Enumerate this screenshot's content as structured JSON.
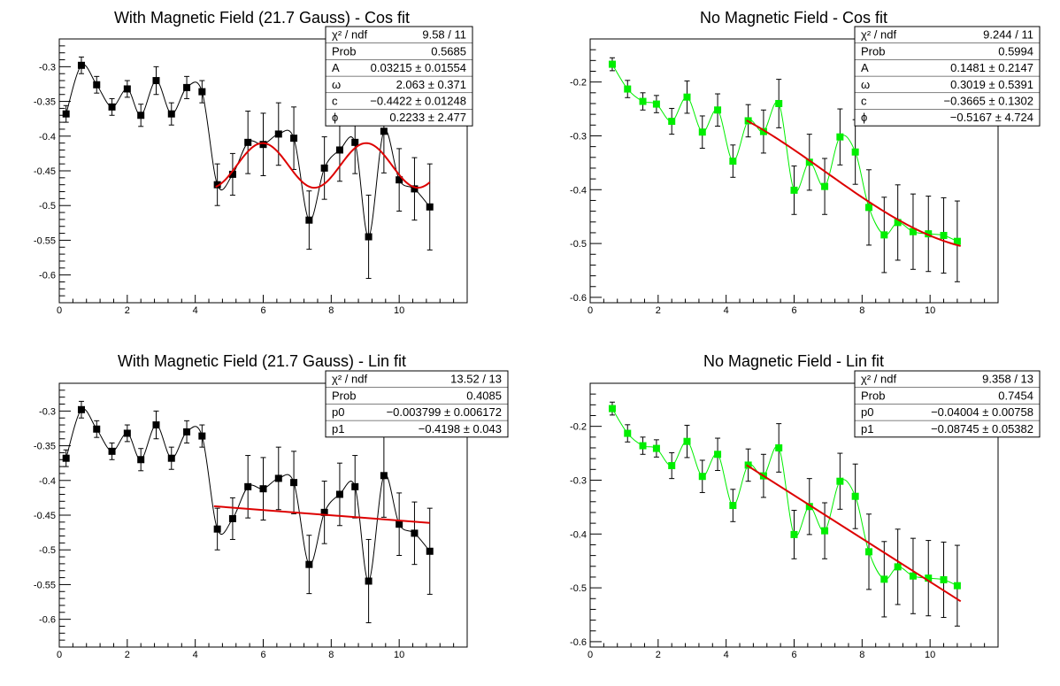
{
  "chart_data": [
    {
      "type": "scatter",
      "title": "With Magnetic Field (21.7 Gauss) - Cos fit",
      "xlim": [
        0,
        12
      ],
      "ylim": [
        -0.64,
        -0.26
      ],
      "xticks": [
        0,
        2,
        4,
        6,
        8,
        10
      ],
      "yticks": [
        -0.3,
        -0.35,
        -0.4,
        -0.45,
        -0.5,
        -0.55,
        -0.6
      ],
      "ytick_labels": [
        "-0.3",
        "-0.35",
        "-0.4",
        "-0.45",
        "-0.5",
        "-0.55",
        "-0.6"
      ],
      "marker_color": "#000000",
      "line_color": "#000000",
      "fit_color": "#dd0000",
      "fit": {
        "kind": "cos",
        "params": {
          "A": 0.03215,
          "omega": 2.063,
          "c": -0.4422,
          "phi": 0.2233
        },
        "x_range": [
          4.6,
          10.9
        ]
      },
      "x": [
        0.2,
        0.65,
        1.1,
        1.55,
        2.0,
        2.4,
        2.85,
        3.3,
        3.75,
        4.2,
        4.65,
        5.1,
        5.55,
        6.0,
        6.45,
        6.9,
        7.35,
        7.8,
        8.25,
        8.7,
        9.1,
        9.55,
        10.0,
        10.45,
        10.9
      ],
      "y": [
        -0.368,
        -0.298,
        -0.326,
        -0.358,
        -0.332,
        -0.37,
        -0.32,
        -0.368,
        -0.33,
        -0.336,
        -0.47,
        -0.455,
        -0.409,
        -0.412,
        -0.397,
        -0.403,
        -0.521,
        -0.446,
        -0.42,
        -0.409,
        -0.545,
        -0.393,
        -0.463,
        -0.476,
        -0.502
      ],
      "yerr": [
        0.012,
        0.012,
        0.012,
        0.012,
        0.012,
        0.016,
        0.02,
        0.016,
        0.016,
        0.016,
        0.03,
        0.03,
        0.045,
        0.045,
        0.045,
        0.045,
        0.042,
        0.045,
        0.045,
        0.045,
        0.06,
        0.06,
        0.045,
        0.045,
        0.062
      ],
      "xerr": 0.08,
      "stats": [
        {
          "label": "χ² / ndf",
          "value": "9.58 / 11"
        },
        {
          "label": "Prob",
          "value": "0.5685"
        },
        {
          "label": "A",
          "value": "0.03215 ± 0.01554"
        },
        {
          "label": "ω",
          "value": "2.063 ± 0.371"
        },
        {
          "label": "c",
          "value": "−0.4422 ± 0.01248"
        },
        {
          "label": "ϕ",
          "value": "0.2233 ± 2.477"
        }
      ]
    },
    {
      "type": "scatter",
      "title": "No Magnetic Field - Cos fit",
      "xlim": [
        0,
        12
      ],
      "ylim": [
        -0.61,
        -0.12
      ],
      "xticks": [
        0,
        2,
        4,
        6,
        8,
        10
      ],
      "yticks": [
        -0.2,
        -0.3,
        -0.4,
        -0.5,
        -0.6
      ],
      "ytick_labels": [
        "-0.2",
        "-0.3",
        "-0.4",
        "-0.5",
        "-0.6"
      ],
      "marker_color": "#00ee00",
      "line_color": "#00ee00",
      "fit_color": "#dd0000",
      "fit": {
        "kind": "cos",
        "params": {
          "A": 0.1481,
          "omega": 0.3019,
          "c": -0.3665,
          "phi": -0.5167
        },
        "x_range": [
          4.6,
          10.9
        ]
      },
      "x": [
        0.65,
        1.1,
        1.55,
        1.95,
        2.4,
        2.85,
        3.3,
        3.75,
        4.2,
        4.65,
        5.1,
        5.55,
        6.0,
        6.45,
        6.9,
        7.35,
        7.8,
        8.2,
        8.65,
        9.05,
        9.5,
        9.95,
        10.4,
        10.8
      ],
      "y": [
        -0.167,
        -0.213,
        -0.236,
        -0.241,
        -0.273,
        -0.228,
        -0.293,
        -0.252,
        -0.347,
        -0.272,
        -0.292,
        -0.24,
        -0.401,
        -0.349,
        -0.394,
        -0.302,
        -0.33,
        -0.433,
        -0.484,
        -0.461,
        -0.478,
        -0.482,
        -0.485,
        -0.496
      ],
      "yerr": [
        0.012,
        0.016,
        0.016,
        0.016,
        0.024,
        0.03,
        0.03,
        0.03,
        0.03,
        0.03,
        0.04,
        0.045,
        0.045,
        0.052,
        0.052,
        0.052,
        0.06,
        0.07,
        0.07,
        0.07,
        0.07,
        0.07,
        0.07,
        0.075
      ],
      "xerr": 0.08,
      "stats": [
        {
          "label": "χ² / ndf",
          "value": "9.244 / 11"
        },
        {
          "label": "Prob",
          "value": "0.5994"
        },
        {
          "label": "A",
          "value": "0.1481 ± 0.2147"
        },
        {
          "label": "ω",
          "value": "0.3019 ± 0.5391"
        },
        {
          "label": "c",
          "value": "−0.3665 ± 0.1302"
        },
        {
          "label": "ϕ",
          "value": "−0.5167 ± 4.724"
        }
      ]
    },
    {
      "type": "scatter",
      "title": "With Magnetic Field (21.7 Gauss) - Lin fit",
      "xlim": [
        0,
        12
      ],
      "ylim": [
        -0.64,
        -0.26
      ],
      "xticks": [
        0,
        2,
        4,
        6,
        8,
        10
      ],
      "yticks": [
        -0.3,
        -0.35,
        -0.4,
        -0.45,
        -0.5,
        -0.55,
        -0.6
      ],
      "ytick_labels": [
        "-0.3",
        "-0.35",
        "-0.4",
        "-0.45",
        "-0.5",
        "-0.55",
        "-0.6"
      ],
      "marker_color": "#000000",
      "line_color": "#000000",
      "fit_color": "#dd0000",
      "fit": {
        "kind": "lin",
        "params": {
          "p0": -0.003799,
          "p1": -0.4198
        },
        "x_range": [
          4.55,
          10.9
        ]
      },
      "x": [
        0.2,
        0.65,
        1.1,
        1.55,
        2.0,
        2.4,
        2.85,
        3.3,
        3.75,
        4.2,
        4.65,
        5.1,
        5.55,
        6.0,
        6.45,
        6.9,
        7.35,
        7.8,
        8.25,
        8.7,
        9.1,
        9.55,
        10.0,
        10.45,
        10.9
      ],
      "y": [
        -0.368,
        -0.298,
        -0.326,
        -0.358,
        -0.332,
        -0.37,
        -0.32,
        -0.368,
        -0.33,
        -0.336,
        -0.47,
        -0.455,
        -0.409,
        -0.412,
        -0.397,
        -0.403,
        -0.521,
        -0.446,
        -0.42,
        -0.409,
        -0.545,
        -0.393,
        -0.463,
        -0.476,
        -0.502
      ],
      "yerr": [
        0.012,
        0.012,
        0.012,
        0.012,
        0.012,
        0.016,
        0.02,
        0.016,
        0.016,
        0.016,
        0.03,
        0.03,
        0.045,
        0.045,
        0.045,
        0.045,
        0.042,
        0.045,
        0.045,
        0.045,
        0.06,
        0.06,
        0.045,
        0.045,
        0.062
      ],
      "xerr": 0.08,
      "stats": [
        {
          "label": "χ² / ndf",
          "value": "13.52 / 13"
        },
        {
          "label": "Prob",
          "value": "0.4085"
        },
        {
          "label": "p0",
          "value": "−0.003799 ± 0.006172"
        },
        {
          "label": "p1",
          "value": "−0.4198 ± 0.043"
        }
      ]
    },
    {
      "type": "scatter",
      "title": "No Magnetic Field - Lin fit",
      "xlim": [
        0,
        12
      ],
      "ylim": [
        -0.61,
        -0.12
      ],
      "xticks": [
        0,
        2,
        4,
        6,
        8,
        10
      ],
      "yticks": [
        -0.2,
        -0.3,
        -0.4,
        -0.5,
        -0.6
      ],
      "ytick_labels": [
        "-0.2",
        "-0.3",
        "-0.4",
        "-0.5",
        "-0.6"
      ],
      "marker_color": "#00ee00",
      "line_color": "#00ee00",
      "fit_color": "#dd0000",
      "fit": {
        "kind": "lin",
        "params": {
          "p0": -0.04004,
          "p1": -0.08745
        },
        "x_range": [
          4.6,
          10.9
        ]
      },
      "x": [
        0.65,
        1.1,
        1.55,
        1.95,
        2.4,
        2.85,
        3.3,
        3.75,
        4.2,
        4.65,
        5.1,
        5.55,
        6.0,
        6.45,
        6.9,
        7.35,
        7.8,
        8.2,
        8.65,
        9.05,
        9.5,
        9.95,
        10.4,
        10.8
      ],
      "y": [
        -0.167,
        -0.213,
        -0.236,
        -0.241,
        -0.273,
        -0.228,
        -0.293,
        -0.252,
        -0.347,
        -0.272,
        -0.292,
        -0.24,
        -0.401,
        -0.349,
        -0.394,
        -0.302,
        -0.33,
        -0.433,
        -0.484,
        -0.461,
        -0.478,
        -0.482,
        -0.485,
        -0.496
      ],
      "yerr": [
        0.012,
        0.016,
        0.016,
        0.016,
        0.024,
        0.03,
        0.03,
        0.03,
        0.03,
        0.03,
        0.04,
        0.045,
        0.045,
        0.052,
        0.052,
        0.052,
        0.06,
        0.07,
        0.07,
        0.07,
        0.07,
        0.07,
        0.07,
        0.075
      ],
      "xerr": 0.08,
      "stats": [
        {
          "label": "χ² / ndf",
          "value": "9.358 / 13"
        },
        {
          "label": "Prob",
          "value": "0.7454"
        },
        {
          "label": "p0",
          "value": "−0.04004 ± 0.00758"
        },
        {
          "label": "p1",
          "value": "−0.08745 ± 0.05382"
        }
      ]
    }
  ]
}
